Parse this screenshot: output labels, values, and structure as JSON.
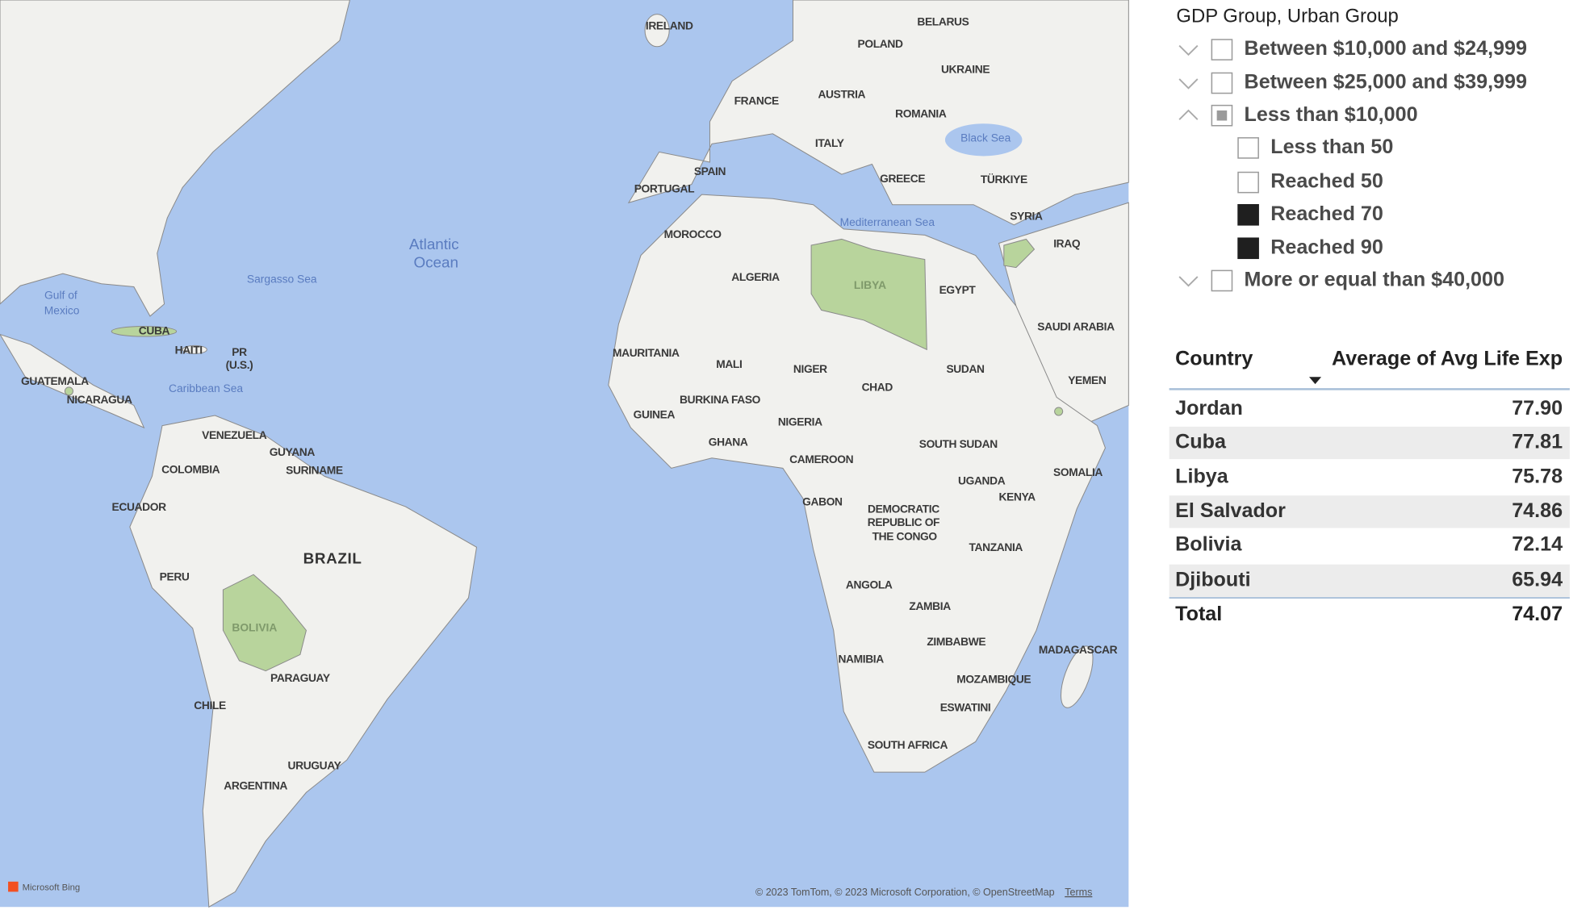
{
  "map": {
    "labels": [
      "IRELAND",
      "BELARUS",
      "POLAND",
      "UKRAINE",
      "FRANCE",
      "AUSTRIA",
      "ROMANIA",
      "ITALY",
      "Black Sea",
      "SPAIN",
      "PORTUGAL",
      "GREECE",
      "TÜRKIYE",
      "MOROCCO",
      "Mediterranean Sea",
      "SYRIA",
      "IRAQ",
      "Atlantic",
      "Ocean",
      "Sargasso Sea",
      "ALGERIA",
      "LIBYA",
      "EGYPT",
      "Gulf of",
      "Mexico",
      "CUBA",
      "HAITI",
      "PR",
      "(U.S.)",
      "GUATEMALA",
      "NICARAGUA",
      "Caribbean Sea",
      "MAURITANIA",
      "MALI",
      "NIGER",
      "CHAD",
      "SUDAN",
      "SAUDI ARABIA",
      "YEMEN",
      "BURKINA FASO",
      "GUINEA",
      "NIGERIA",
      "GHANA",
      "VENEZUELA",
      "GUYANA",
      "SURINAME",
      "COLOMBIA",
      "SOUTH SUDAN",
      "CAMEROON",
      "SOMALIA",
      "UGANDA",
      "KENYA",
      "ECUADOR",
      "GABON",
      "DEMOCRATIC",
      "REPUBLIC OF",
      "THE CONGO",
      "BRAZIL",
      "TANZANIA",
      "PERU",
      "BOLIVIA",
      "ANGOLA",
      "ZAMBIA",
      "ZIMBABWE",
      "NAMIBIA",
      "MADAGASCAR",
      "MOZAMBIQUE",
      "PARAGUAY",
      "CHILE",
      "ESWATINI",
      "SOUTH AFRICA",
      "URUGUAY",
      "ARGENTINA"
    ],
    "brand": "Microsoft Bing",
    "attribution": "© 2023 TomTom, © 2023 Microsoft Corporation, © OpenStreetMap",
    "terms": "Terms"
  },
  "slicer": {
    "title": "GDP Group, Urban Group",
    "items": [
      {
        "label": "Between $10,000 and $24,999",
        "level": 0,
        "state": "unchecked",
        "expanded": false
      },
      {
        "label": "Between $25,000 and $39,999",
        "level": 0,
        "state": "unchecked",
        "expanded": false
      },
      {
        "label": "Less than $10,000",
        "level": 0,
        "state": "partial",
        "expanded": true
      },
      {
        "label": "Less than 50",
        "level": 1,
        "state": "unchecked"
      },
      {
        "label": "Reached 50",
        "level": 1,
        "state": "unchecked"
      },
      {
        "label": "Reached 70",
        "level": 1,
        "state": "checked"
      },
      {
        "label": "Reached 90",
        "level": 1,
        "state": "checked"
      },
      {
        "label": "More or equal than $40,000",
        "level": 0,
        "state": "unchecked",
        "expanded": false
      }
    ]
  },
  "table": {
    "columns": [
      "Country",
      "Average of Avg Life Exp"
    ],
    "rows": [
      [
        "Jordan",
        "77.90"
      ],
      [
        "Cuba",
        "77.81"
      ],
      [
        "Libya",
        "75.78"
      ],
      [
        "El Salvador",
        "74.86"
      ],
      [
        "Bolivia",
        "72.14"
      ],
      [
        "Djibouti",
        "65.94"
      ]
    ],
    "total": [
      "Total",
      "74.07"
    ]
  }
}
